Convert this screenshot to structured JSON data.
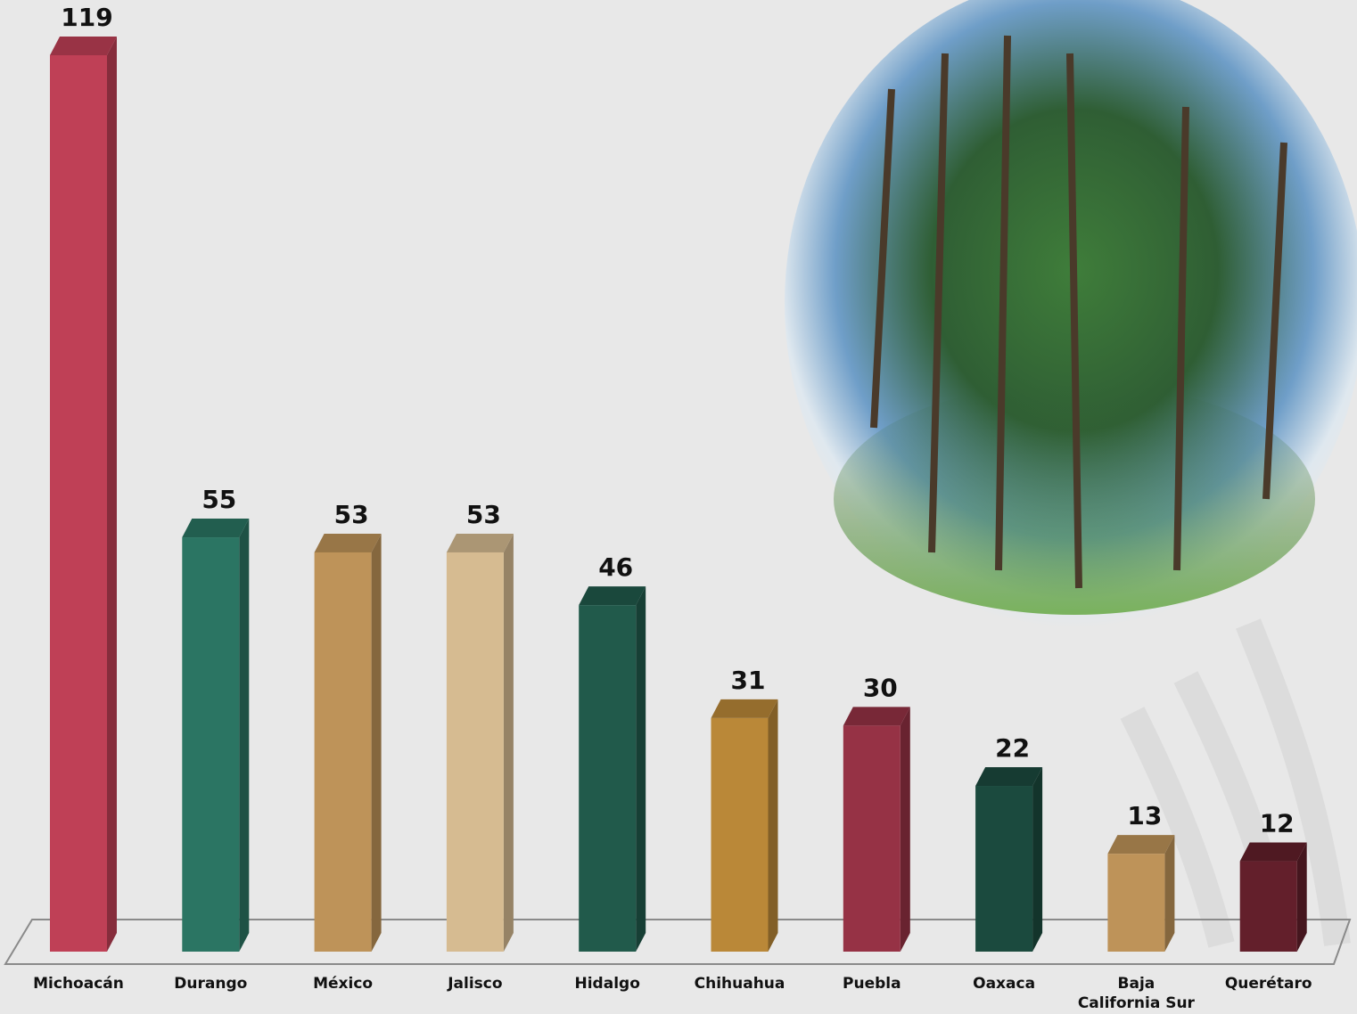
{
  "chart_data": {
    "type": "bar",
    "categories": [
      "Michoacán",
      "Durango",
      "México",
      "Jalisco",
      "Hidalgo",
      "Chihuahua",
      "Puebla",
      "Oaxaca",
      "Baja California Sur",
      "Querétaro"
    ],
    "values": [
      119,
      55,
      53,
      53,
      46,
      31,
      30,
      22,
      13,
      12
    ],
    "colors": [
      "#bf4056",
      "#2b7563",
      "#be9359",
      "#d6bb91",
      "#215a4b",
      "#ba8838",
      "#963245",
      "#1b4a3e",
      "#be9359",
      "#631f2b"
    ]
  }
}
